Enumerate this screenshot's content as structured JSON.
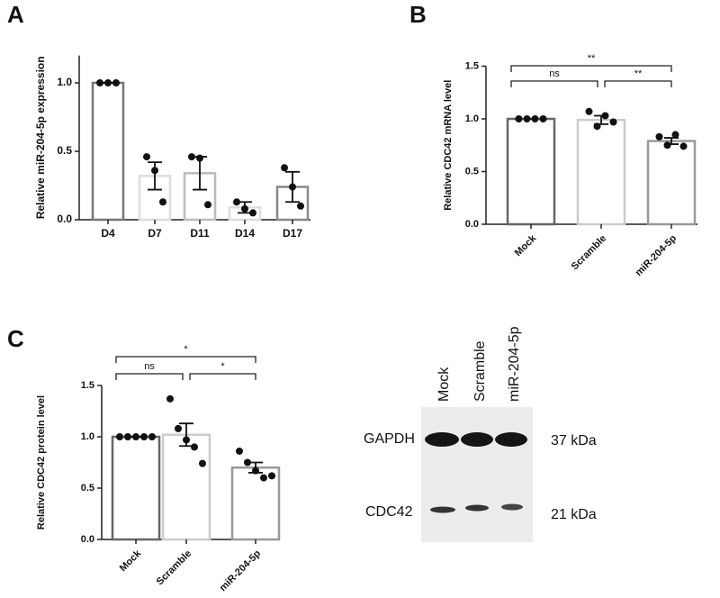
{
  "chart_data": [
    {
      "type": "bar",
      "panel": "A",
      "ylabel": "Relative miR-204-5p expression",
      "categories": [
        "D4",
        "D7",
        "D11",
        "D14",
        "D17"
      ],
      "values": [
        1.0,
        0.32,
        0.34,
        0.09,
        0.24
      ],
      "errors": [
        0,
        0.1,
        0.12,
        0.04,
        0.11
      ],
      "points": [
        [
          1.0,
          1.0,
          1.0
        ],
        [
          0.46,
          0.36,
          0.13
        ],
        [
          0.46,
          0.45,
          0.11
        ],
        [
          0.13,
          0.08,
          0.05
        ],
        [
          0.38,
          0.24,
          0.1
        ]
      ],
      "colors": [
        "#777777",
        "#dddddd",
        "#bbbbbb",
        "#dddddd",
        "#888888"
      ],
      "ylim": [
        0,
        1.2
      ],
      "yticks": [
        {
          "value": 0,
          "label": "0.0"
        },
        {
          "value": 0.5,
          "label": "0.5"
        },
        {
          "value": 1,
          "label": "1.0"
        }
      ],
      "comparisons": []
    },
    {
      "type": "bar",
      "panel": "B",
      "ylabel": "Relative CDC42 mRNA level",
      "categories": [
        "Mock",
        "Scramble",
        "miR-204-5p"
      ],
      "values": [
        1.0,
        0.99,
        0.79
      ],
      "errors": [
        0,
        0.04,
        0.03
      ],
      "points": [
        [
          1.0,
          1.0,
          1.0,
          1.0
        ],
        [
          1.07,
          0.93,
          1.03,
          0.97
        ],
        [
          0.83,
          0.75,
          0.85,
          0.74
        ]
      ],
      "colors": [
        "#666666",
        "#cccccc",
        "#999999"
      ],
      "ylim": [
        0,
        1.5
      ],
      "yticks": [
        {
          "value": 0,
          "label": "0.0"
        },
        {
          "value": 0.5,
          "label": "0.5"
        },
        {
          "value": 1,
          "label": "1.0"
        },
        {
          "value": 1.5,
          "label": "1.5"
        }
      ],
      "comparisons": [
        {
          "label": "**",
          "between": [
            "Mock",
            "miR-204-5p"
          ]
        },
        {
          "label": "ns",
          "between": [
            "Mock",
            "Scramble"
          ]
        },
        {
          "label": "**",
          "between": [
            "Scramble",
            "miR-204-5p"
          ]
        }
      ]
    },
    {
      "type": "bar",
      "panel": "C",
      "ylabel": "Relative CDC42 protein level",
      "categories": [
        "Mock",
        "Scramble",
        "miR-204-5p"
      ],
      "values": [
        1.0,
        1.02,
        0.7
      ],
      "errors": [
        0,
        0.11,
        0.05
      ],
      "points": [
        [
          1.0,
          1.0,
          1.0,
          1.0,
          1.0
        ],
        [
          1.37,
          1.08,
          0.97,
          0.9,
          0.74
        ],
        [
          0.86,
          0.75,
          0.67,
          0.6,
          0.62
        ]
      ],
      "colors": [
        "#666666",
        "#cccccc",
        "#999999"
      ],
      "ylim": [
        0,
        1.5
      ],
      "yticks": [
        {
          "value": 0,
          "label": "0.0"
        },
        {
          "value": 0.5,
          "label": "0.5"
        },
        {
          "value": 1,
          "label": "1.0"
        },
        {
          "value": 1.5,
          "label": "1.5"
        }
      ],
      "comparisons": [
        {
          "label": "*",
          "between": [
            "Mock",
            "miR-204-5p"
          ]
        },
        {
          "label": "ns",
          "between": [
            "Mock",
            "Scramble"
          ]
        },
        {
          "label": "*",
          "between": [
            "Scramble",
            "miR-204-5p"
          ]
        }
      ]
    }
  ],
  "blot": {
    "lanes": [
      "Mock",
      "Scramble",
      "miR-204-5p"
    ],
    "bands": [
      {
        "protein": "GAPDH",
        "size": "37 kDa"
      },
      {
        "protein": "CDC42",
        "size": "21 kDa"
      }
    ]
  }
}
